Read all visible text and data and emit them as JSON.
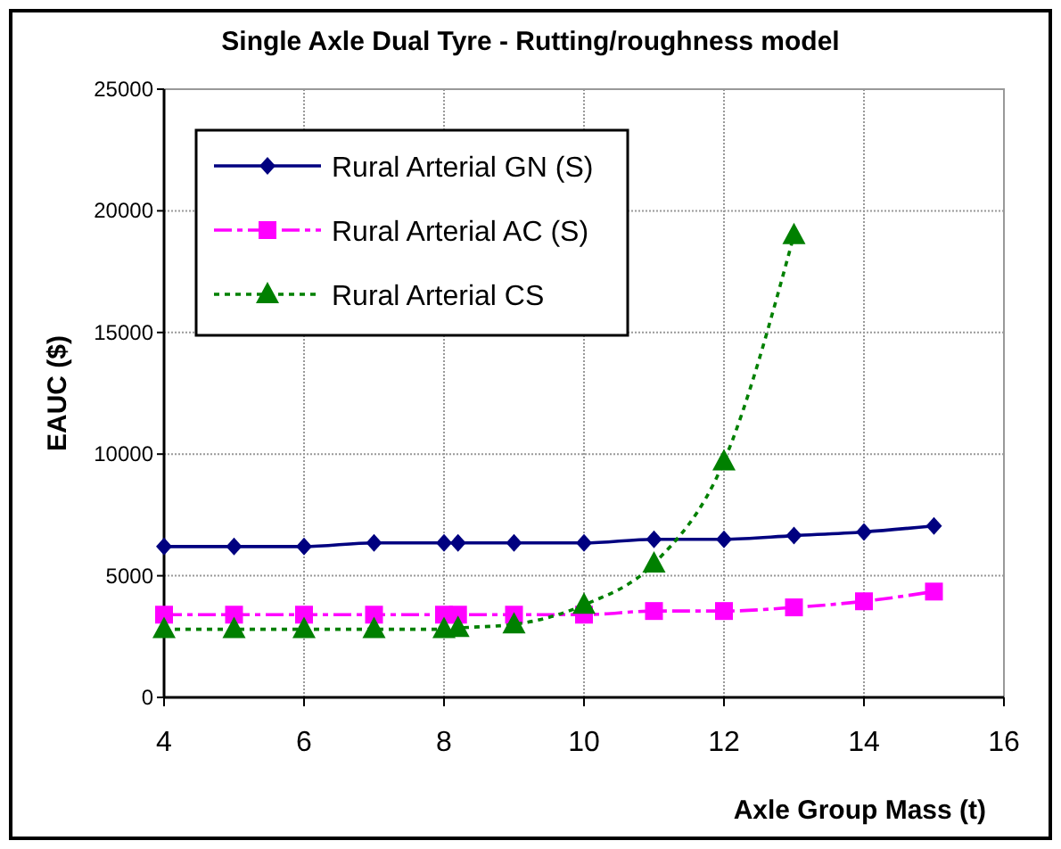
{
  "chart_data": {
    "type": "line",
    "title": "Single Axle Dual Tyre - Rutting/roughness model",
    "xlabel": "Axle Group Mass (t)",
    "ylabel": "EAUC ($)",
    "xlim": [
      4,
      16
    ],
    "xticks": [
      4,
      6,
      8,
      10,
      12,
      14,
      16
    ],
    "ylim": [
      0,
      25000
    ],
    "yticks": [
      0,
      5000,
      10000,
      15000,
      20000,
      25000
    ],
    "grid": true,
    "legend": "top left",
    "series": [
      {
        "name": "Rural  Arterial GN (S)",
        "color": "#000080",
        "marker": "diamond",
        "line_style": "solid",
        "x": [
          4,
          5,
          6,
          7,
          8,
          8.2,
          9,
          10,
          11,
          12,
          13,
          14,
          15
        ],
        "values": [
          6200,
          6200,
          6200,
          6350,
          6350,
          6350,
          6350,
          6350,
          6500,
          6500,
          6650,
          6800,
          7050
        ]
      },
      {
        "name": "Rural Arterial  AC (S)",
        "color": "#ff00ff",
        "marker": "square",
        "line_style": "dashed",
        "x": [
          4,
          5,
          6,
          7,
          8,
          8.2,
          9,
          10,
          11,
          12,
          13,
          14,
          15
        ],
        "values": [
          3400,
          3400,
          3400,
          3400,
          3400,
          3400,
          3400,
          3400,
          3550,
          3550,
          3700,
          3950,
          4350
        ]
      },
      {
        "name": "Rural Arterial CS",
        "color": "#008000",
        "marker": "triangle",
        "line_style": "dotted",
        "x": [
          4,
          5,
          6,
          7,
          8,
          8.2,
          9,
          10,
          11,
          12,
          13
        ],
        "values": [
          2800,
          2800,
          2800,
          2800,
          2800,
          2850,
          3000,
          3800,
          5500,
          9700,
          19000
        ]
      }
    ]
  }
}
